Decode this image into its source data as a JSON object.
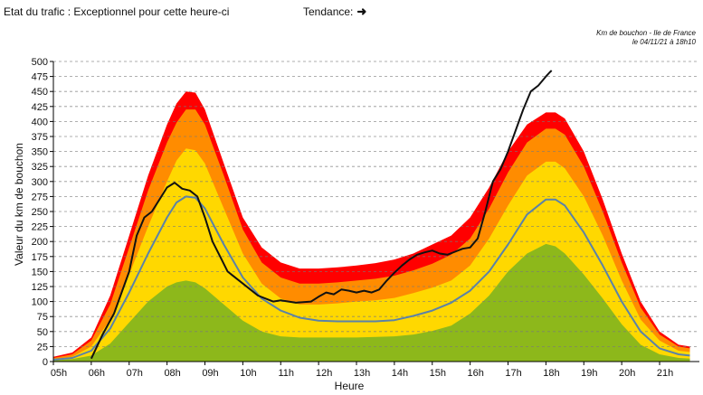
{
  "header": {
    "status_label": "Etat du trafic : Exceptionnel pour cette heure-ci",
    "trend_label": "Tendance:",
    "trend_icon": "arrow-right-icon"
  },
  "note": {
    "line1": "Km de bouchon - Ile de France",
    "line2": "le 04/11/21 à 18h10"
  },
  "chart_data": {
    "type": "area",
    "xlabel": "Heure",
    "ylabel": "Valeur du  km de bouchon",
    "xlim": [
      5,
      22.05
    ],
    "ylim": [
      0,
      500
    ],
    "x_ticks": [
      5,
      6,
      7,
      8,
      9,
      10,
      11,
      12,
      13,
      14,
      15,
      16,
      17,
      18,
      19,
      20,
      21
    ],
    "x_tick_labels": [
      "05h",
      "06h",
      "07h",
      "08h",
      "09h",
      "10h",
      "11h",
      "12h",
      "13h",
      "14h",
      "15h",
      "16h",
      "17h",
      "18h",
      "19h",
      "20h",
      "21h"
    ],
    "y_ticks": [
      0,
      25,
      50,
      75,
      100,
      125,
      150,
      175,
      200,
      225,
      250,
      275,
      300,
      325,
      350,
      375,
      400,
      425,
      450,
      475,
      500
    ],
    "grid": true,
    "bands": [
      {
        "color": "#ff0000",
        "x": [
          5,
          5.5,
          6,
          6.5,
          7,
          7.5,
          8,
          8.25,
          8.5,
          8.75,
          9,
          9.5,
          10,
          10.5,
          11,
          11.5,
          12,
          12.5,
          13,
          13.5,
          14,
          14.5,
          15,
          15.5,
          16,
          16.5,
          17,
          17.5,
          18,
          18.25,
          18.5,
          19,
          19.5,
          20,
          20.5,
          21,
          21.5,
          21.8
        ],
        "y": [
          8,
          15,
          40,
          110,
          210,
          310,
          395,
          430,
          450,
          448,
          420,
          330,
          240,
          190,
          165,
          155,
          155,
          157,
          160,
          164,
          170,
          180,
          195,
          210,
          240,
          290,
          350,
          395,
          415,
          415,
          405,
          350,
          270,
          180,
          100,
          50,
          28,
          25
        ]
      },
      {
        "color": "#ff8c00",
        "x": [
          5,
          5.5,
          6,
          6.5,
          7,
          7.5,
          8,
          8.25,
          8.5,
          8.75,
          9,
          9.5,
          10,
          10.5,
          11,
          11.5,
          12,
          12.5,
          13,
          13.5,
          14,
          14.5,
          15,
          15.5,
          16,
          16.5,
          17,
          17.5,
          18,
          18.25,
          18.5,
          19,
          19.5,
          20,
          20.5,
          21,
          21.5,
          21.8
        ],
        "y": [
          6,
          12,
          35,
          95,
          190,
          285,
          365,
          398,
          420,
          420,
          395,
          310,
          220,
          165,
          140,
          130,
          130,
          132,
          135,
          138,
          143,
          152,
          163,
          178,
          205,
          255,
          315,
          365,
          388,
          388,
          378,
          325,
          250,
          165,
          90,
          45,
          25,
          22
        ]
      },
      {
        "color": "#ffd800",
        "x": [
          5,
          5.5,
          6,
          6.5,
          7,
          7.5,
          8,
          8.25,
          8.5,
          8.75,
          9,
          9.5,
          10,
          10.5,
          11,
          11.5,
          12,
          12.5,
          13,
          13.5,
          14,
          14.5,
          15,
          15.5,
          16,
          16.5,
          17,
          17.5,
          18,
          18.25,
          18.5,
          19,
          19.5,
          20,
          20.5,
          21,
          21.5,
          21.8
        ],
        "y": [
          4,
          8,
          25,
          70,
          145,
          225,
          300,
          335,
          355,
          352,
          330,
          255,
          180,
          130,
          105,
          95,
          95,
          97,
          100,
          102,
          106,
          114,
          123,
          135,
          160,
          205,
          260,
          310,
          333,
          333,
          322,
          275,
          210,
          135,
          70,
          35,
          18,
          16
        ]
      },
      {
        "color": "#8db81b",
        "x": [
          5,
          5.5,
          6,
          6.5,
          7,
          7.5,
          8,
          8.25,
          8.5,
          8.75,
          9,
          9.5,
          10,
          10.5,
          11,
          11.5,
          12,
          12.5,
          13,
          13.5,
          14,
          14.5,
          15,
          15.5,
          16,
          16.5,
          17,
          17.5,
          18,
          18.25,
          18.5,
          19,
          19.5,
          20,
          20.5,
          21,
          21.5,
          21.8
        ],
        "y": [
          2,
          4,
          10,
          30,
          65,
          100,
          125,
          132,
          135,
          132,
          122,
          95,
          68,
          50,
          42,
          40,
          40,
          40,
          40,
          41,
          42,
          45,
          51,
          60,
          80,
          110,
          150,
          180,
          196,
          192,
          180,
          145,
          105,
          62,
          28,
          12,
          6,
          5
        ]
      }
    ],
    "series": [
      {
        "name": "",
        "color": "#5b82a8",
        "x": [
          5,
          5.5,
          6,
          6.5,
          7,
          7.5,
          8,
          8.25,
          8.5,
          8.75,
          9,
          9.5,
          10,
          10.5,
          11,
          11.5,
          12,
          12.5,
          13,
          13.5,
          14,
          14.5,
          15,
          15.5,
          16,
          16.5,
          17,
          17.5,
          18,
          18.25,
          18.5,
          19,
          19.5,
          20,
          20.5,
          21,
          21.5,
          21.8
        ],
        "y": [
          3,
          6,
          18,
          55,
          115,
          180,
          240,
          265,
          275,
          273,
          255,
          195,
          140,
          105,
          85,
          73,
          68,
          67,
          67,
          67,
          69,
          76,
          85,
          98,
          118,
          150,
          195,
          245,
          270,
          270,
          260,
          215,
          160,
          100,
          50,
          22,
          12,
          10
        ]
      },
      {
        "name": "",
        "color": "#111111",
        "x": [
          6,
          6.3,
          6.6,
          7,
          7.2,
          7.4,
          7.6,
          7.8,
          8,
          8.2,
          8.4,
          8.6,
          8.8,
          9,
          9.2,
          9.4,
          9.6,
          10,
          10.4,
          10.8,
          11,
          11.4,
          11.8,
          12,
          12.2,
          12.4,
          12.6,
          12.8,
          13,
          13.2,
          13.4,
          13.6,
          13.8,
          14,
          14.2,
          14.4,
          14.6,
          14.8,
          15,
          15.2,
          15.4,
          15.6,
          15.8,
          16,
          16.2,
          16.4,
          16.6,
          16.8,
          17,
          17.2,
          17.4,
          17.6,
          17.8,
          18,
          18.1,
          18.15
        ],
        "y": [
          5,
          45,
          80,
          150,
          210,
          240,
          250,
          270,
          290,
          298,
          288,
          285,
          275,
          240,
          200,
          175,
          150,
          130,
          110,
          100,
          102,
          98,
          100,
          108,
          115,
          112,
          120,
          118,
          115,
          118,
          115,
          120,
          135,
          148,
          160,
          170,
          178,
          182,
          185,
          180,
          178,
          183,
          188,
          190,
          205,
          250,
          300,
          320,
          350,
          385,
          420,
          450,
          460,
          475,
          482,
          485
        ]
      }
    ]
  }
}
